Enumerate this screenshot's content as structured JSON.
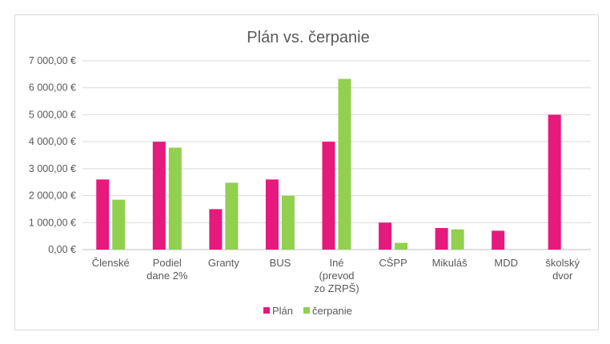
{
  "chart_data": {
    "type": "bar",
    "title": "Plán vs. čerpanie",
    "categories": [
      [
        "Členské"
      ],
      [
        "Podiel",
        "dane 2%"
      ],
      [
        "Granty"
      ],
      [
        "BUS"
      ],
      [
        "Iné",
        "(prevod",
        "zo ZRPŠ)"
      ],
      [
        "CŠPP"
      ],
      [
        "Mikuláš"
      ],
      [
        "MDD"
      ],
      [
        "školský",
        "dvor"
      ]
    ],
    "series": [
      {
        "name": "Plán",
        "color": "#e6197d",
        "values": [
          2600,
          4000,
          1500,
          2600,
          4000,
          1000,
          800,
          700,
          5000
        ]
      },
      {
        "name": "čerpanie",
        "color": "#92d050",
        "values": [
          1850,
          3780,
          2480,
          2000,
          6330,
          250,
          750,
          0,
          0
        ]
      }
    ],
    "ylim": [
      0,
      7000
    ],
    "ytick_labels": [
      "0,00 €",
      "1 000,00 €",
      "2 000,00 €",
      "3 000,00 €",
      "4 000,00 €",
      "5 000,00 €",
      "6 000,00 €",
      "7 000,00 €"
    ],
    "grid": true,
    "legend_position": "bottom"
  }
}
